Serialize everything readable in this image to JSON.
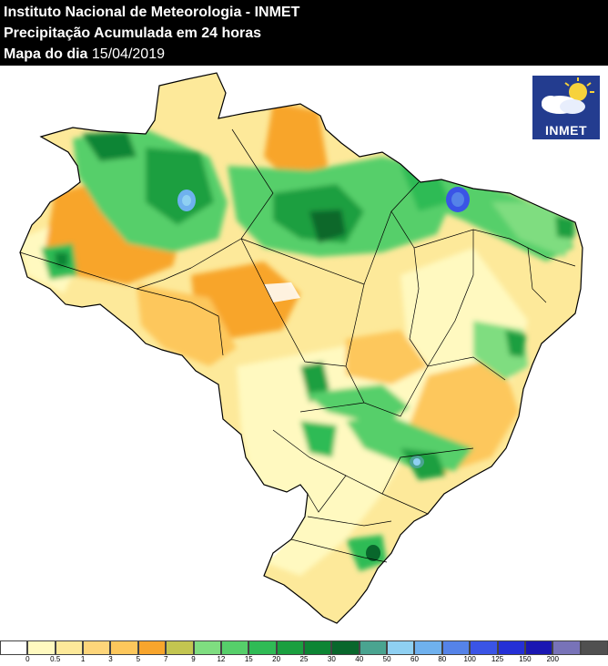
{
  "header": {
    "line1": "Instituto Nacional de Meteorologia - INMET",
    "line2": "Precipitação Acumulada em 24 horas",
    "line3_label": "Mapa do dia",
    "line3_date": "15/04/2019"
  },
  "logo": {
    "text": "INMET",
    "icon": "sun-cloud-icon"
  },
  "legend": {
    "colors": [
      "#ffffff",
      "#fff9c0",
      "#fde99a",
      "#fdd57a",
      "#fdc75c",
      "#f8a52c",
      "#c3c550",
      "#7fdd80",
      "#56cf6a",
      "#2fbb55",
      "#1a9f3f",
      "#0d8534",
      "#09672c",
      "#4aa490",
      "#8fd0f2",
      "#6fb1ee",
      "#5583e8",
      "#3a54e6",
      "#2530d6",
      "#1a17b2",
      "#7873b8",
      "#505050"
    ],
    "ticks": [
      "0",
      "0.5",
      "1",
      "3",
      "5",
      "7",
      "9",
      "12",
      "15",
      "20",
      "25",
      "30",
      "40",
      "50",
      "60",
      "80",
      "100",
      "125",
      "150",
      "200"
    ]
  }
}
